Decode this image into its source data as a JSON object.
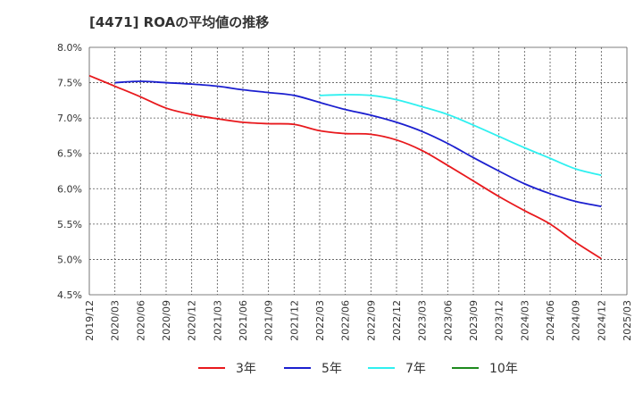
{
  "chart_data": {
    "type": "line",
    "title": "[4471]  ROAの平均値の推移",
    "xlabel": "",
    "ylabel": "",
    "ylim": [
      4.5,
      8.0
    ],
    "yticks": [
      "4.5%",
      "5.0%",
      "5.5%",
      "6.0%",
      "6.5%",
      "7.0%",
      "7.5%",
      "8.0%"
    ],
    "ytick_values": [
      4.5,
      5.0,
      5.5,
      6.0,
      6.5,
      7.0,
      7.5,
      8.0
    ],
    "categories": [
      "2019/12",
      "2020/03",
      "2020/06",
      "2020/09",
      "2020/12",
      "2021/03",
      "2021/06",
      "2021/09",
      "2021/12",
      "2022/03",
      "2022/06",
      "2022/09",
      "2022/12",
      "2023/03",
      "2023/06",
      "2023/09",
      "2023/12",
      "2024/03",
      "2024/06",
      "2024/09",
      "2024/12",
      "2025/03"
    ],
    "grid": true,
    "legend_position": "bottom",
    "series": [
      {
        "name": "3年",
        "color": "#e8191d",
        "values": [
          7.6,
          7.45,
          7.3,
          7.14,
          7.05,
          6.99,
          6.94,
          6.92,
          6.91,
          6.82,
          6.78,
          6.77,
          6.69,
          6.54,
          6.33,
          6.11,
          5.89,
          5.69,
          5.5,
          5.24,
          5.01,
          null
        ]
      },
      {
        "name": "5年",
        "color": "#1b1fcf",
        "values": [
          null,
          7.5,
          7.52,
          7.5,
          7.48,
          7.45,
          7.4,
          7.36,
          7.32,
          7.22,
          7.12,
          7.04,
          6.94,
          6.81,
          6.64,
          6.44,
          6.25,
          6.07,
          5.93,
          5.82,
          5.75,
          null
        ]
      },
      {
        "name": "7年",
        "color": "#2ff0f0",
        "values": [
          null,
          null,
          null,
          null,
          null,
          null,
          null,
          null,
          null,
          7.32,
          7.33,
          7.32,
          7.26,
          7.16,
          7.05,
          6.9,
          6.74,
          6.58,
          6.43,
          6.28,
          6.19,
          null
        ]
      },
      {
        "name": "10年",
        "color": "#1d8a1d",
        "values": [
          null,
          null,
          null,
          null,
          null,
          null,
          null,
          null,
          null,
          null,
          null,
          null,
          null,
          null,
          null,
          null,
          null,
          null,
          null,
          null,
          null,
          null
        ]
      }
    ]
  }
}
